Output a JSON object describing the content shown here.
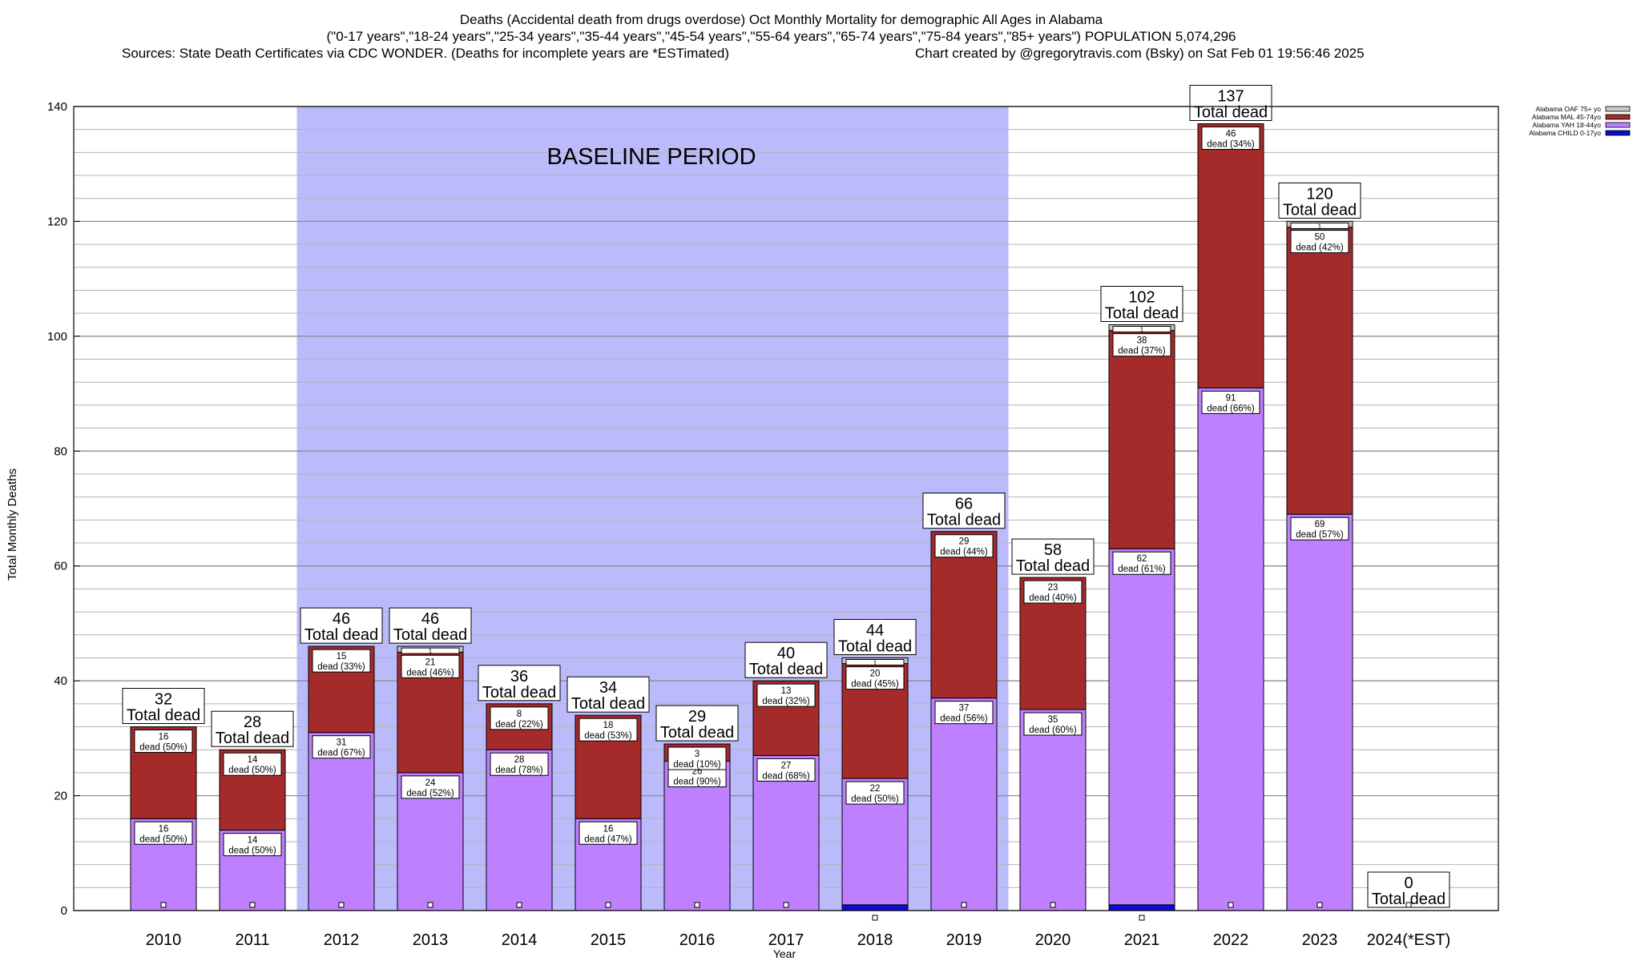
{
  "header": {
    "title_line1": "Deaths (Accidental death from drugs overdose) Oct Monthly Mortality for demographic All Ages in Alabama",
    "title_line2": "(\"0-17 years\",\"18-24 years\",\"25-34 years\",\"35-44 years\",\"45-54 years\",\"55-64 years\",\"65-74 years\",\"75-84 years\",\"85+ years\") POPULATION 5,074,296",
    "sources": "Sources: State Death Certificates via CDC WONDER. (Deaths for incomplete years are *ESTimated)",
    "credit": "Chart created by @gregorytravis.com (Bsky) on Sat Feb 01 19:56:46 2025"
  },
  "chart_data": {
    "type": "bar",
    "stacked": true,
    "xlabel": "Year",
    "ylabel": "Total Monthly Deaths",
    "ylim": [
      0,
      140
    ],
    "yticks": [
      0,
      20,
      40,
      60,
      80,
      100,
      120,
      140
    ],
    "grid": true,
    "legend_position": "top-right",
    "categories": [
      "2010",
      "2011",
      "2012",
      "2013",
      "2014",
      "2015",
      "2016",
      "2017",
      "2018",
      "2019",
      "2020",
      "2021",
      "2022",
      "2023",
      "2024(*EST)"
    ],
    "baseline": {
      "label": "BASELINE PERIOD",
      "from": "2012",
      "to": "2019",
      "color": "#bbbbfb"
    },
    "series": [
      {
        "name": "Alabama CHILD 0-17yo",
        "color": "#0b0bd6",
        "values": [
          0,
          0,
          0,
          0,
          0,
          0,
          0,
          0,
          1,
          0,
          0,
          1,
          0,
          0,
          0
        ],
        "labels": [
          "",
          "",
          "",
          "",
          "",
          "",
          "",
          "",
          "",
          "",
          "",
          "",
          "",
          "",
          ""
        ]
      },
      {
        "name": "Alabama YAH 18-44yo",
        "color": "#bf80ff",
        "values": [
          16,
          14,
          31,
          24,
          28,
          16,
          26,
          27,
          22,
          37,
          35,
          62,
          91,
          69,
          0
        ],
        "labels": [
          "dead (50%)",
          "dead (50%)",
          "dead (67%)",
          "dead (52%)",
          "dead (78%)",
          "dead (47%)",
          "dead (90%)",
          "dead (68%)",
          "dead (50%)",
          "dead (56%)",
          "dead (60%)",
          "dead (61%)",
          "dead (66%)",
          "dead (57%)",
          ""
        ]
      },
      {
        "name": "Alabama MAL 45-74yo",
        "color": "#a52a2a",
        "values": [
          16,
          14,
          15,
          21,
          8,
          18,
          3,
          13,
          20,
          29,
          23,
          38,
          46,
          50,
          0
        ],
        "labels": [
          "dead (50%)",
          "dead (50%)",
          "dead (33%)",
          "dead (46%)",
          "dead (22%)",
          "dead (53%)",
          "dead (10%)",
          "dead (32%)",
          "dead (45%)",
          "dead (44%)",
          "dead (40%)",
          "dead (37%)",
          "dead (34%)",
          "dead (42%)",
          ""
        ]
      },
      {
        "name": "Alabama OAF 75+ yo",
        "color": "#c8c8c8",
        "values": [
          0,
          0,
          0,
          1,
          0,
          0,
          0,
          0,
          1,
          0,
          0,
          1,
          0,
          1,
          0
        ],
        "labels": [
          "",
          "",
          "",
          "1",
          "",
          "",
          "",
          "",
          "1",
          "",
          "",
          "1",
          "",
          "1",
          ""
        ]
      }
    ],
    "totals": [
      32,
      28,
      46,
      46,
      36,
      34,
      29,
      40,
      44,
      66,
      58,
      102,
      137,
      120,
      0
    ],
    "total_label": "Total dead"
  }
}
